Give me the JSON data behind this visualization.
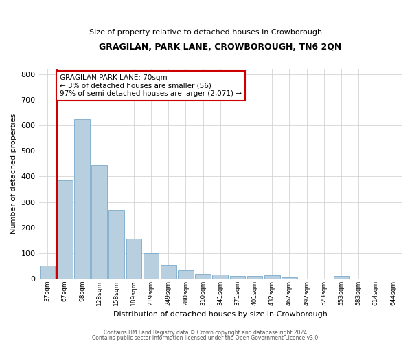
{
  "title": "GRAGILAN, PARK LANE, CROWBOROUGH, TN6 2QN",
  "subtitle": "Size of property relative to detached houses in Crowborough",
  "xlabel": "Distribution of detached houses by size in Crowborough",
  "ylabel": "Number of detached properties",
  "categories": [
    "37sqm",
    "67sqm",
    "98sqm",
    "128sqm",
    "158sqm",
    "189sqm",
    "219sqm",
    "249sqm",
    "280sqm",
    "310sqm",
    "341sqm",
    "371sqm",
    "401sqm",
    "432sqm",
    "462sqm",
    "492sqm",
    "523sqm",
    "553sqm",
    "583sqm",
    "614sqm",
    "644sqm"
  ],
  "values": [
    50,
    385,
    625,
    445,
    270,
    155,
    100,
    53,
    32,
    20,
    15,
    10,
    10,
    13,
    5,
    0,
    0,
    10,
    0,
    0,
    0
  ],
  "bar_color": "#b8cfe0",
  "bar_edgecolor": "#7aaac8",
  "background_color": "#ffffff",
  "grid_color": "#cccccc",
  "redline_bar_index": 1,
  "annotation_text": "GRAGILAN PARK LANE: 70sqm\n← 3% of detached houses are smaller (56)\n97% of semi-detached houses are larger (2,071) →",
  "annotation_box_facecolor": "#ffffff",
  "annotation_box_edgecolor": "#cc0000",
  "ylim": [
    0,
    820
  ],
  "yticks": [
    0,
    100,
    200,
    300,
    400,
    500,
    600,
    700,
    800
  ],
  "footer1": "Contains HM Land Registry data © Crown copyright and database right 2024.",
  "footer2": "Contains public sector information licensed under the Open Government Licence v3.0."
}
